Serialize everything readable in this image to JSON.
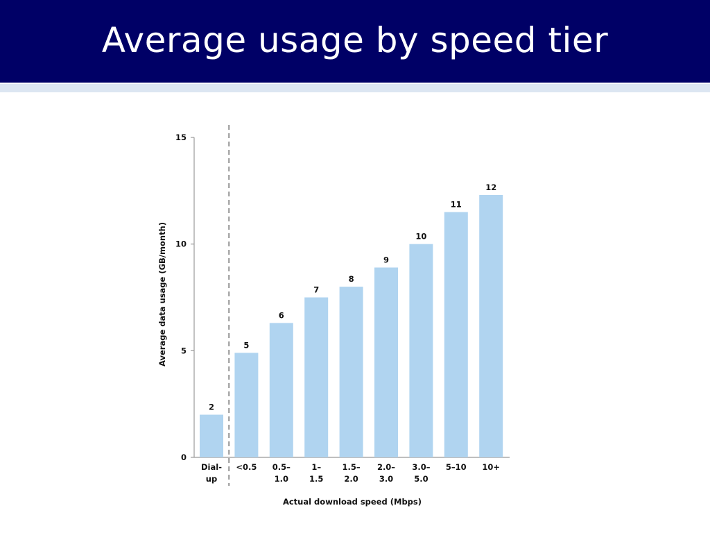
{
  "slide": {
    "title": "Average usage by speed tier"
  },
  "colors": {
    "title_bg": "#000066",
    "accent": "#dce6f2",
    "bar": "#b0d4f0",
    "axis": "#999999",
    "divider": "#888888"
  },
  "chart_data": {
    "type": "bar",
    "categories": [
      [
        "Dial-",
        "up"
      ],
      [
        "<0.5"
      ],
      [
        "0.5–",
        "1.0"
      ],
      [
        "1–",
        "1.5"
      ],
      [
        "1.5–",
        "2.0"
      ],
      [
        "2.0–",
        "3.0"
      ],
      [
        "3.0–",
        "5.0"
      ],
      [
        "5–10"
      ],
      [
        "10+"
      ]
    ],
    "values": [
      2.0,
      4.9,
      6.3,
      7.5,
      8.0,
      8.9,
      10.0,
      11.5,
      12.3
    ],
    "data_labels": [
      "2",
      "5",
      "6",
      "7",
      "8",
      "9",
      "10",
      "11",
      "12"
    ],
    "xlabel": "Actual download speed (Mbps)",
    "ylabel": "Average data usage (GB/month)",
    "ylim": [
      0,
      15
    ],
    "yticks": [
      0,
      5,
      10,
      15
    ],
    "grid": false,
    "divider_after_category": 0
  }
}
